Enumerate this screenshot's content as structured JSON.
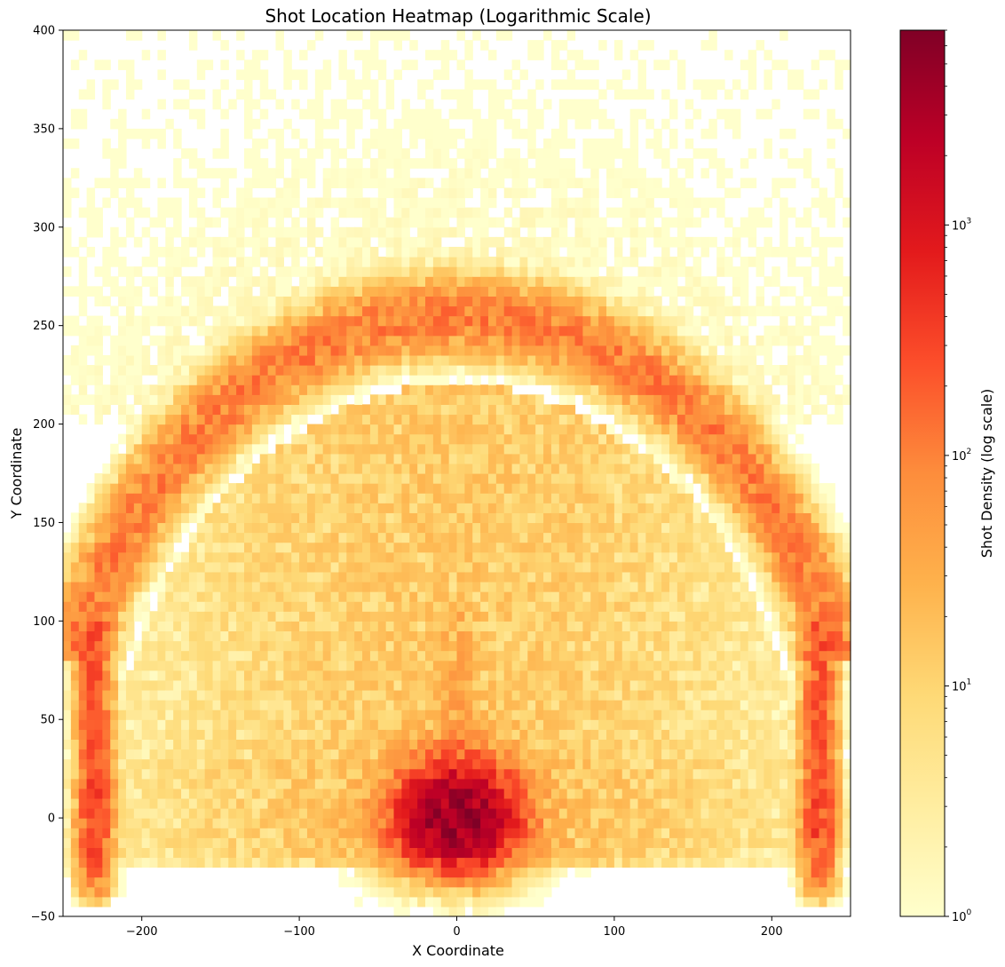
{
  "chart_data": {
    "type": "heatmap",
    "title": "Shot Location Heatmap (Logarithmic Scale)",
    "xlabel": "X Coordinate",
    "ylabel": "Y Coordinate",
    "xlim": [
      -250,
      250
    ],
    "ylim": [
      -50,
      400
    ],
    "x_ticks": [
      -200,
      -100,
      0,
      100,
      200
    ],
    "x_tick_labels": [
      "−200",
      "−100",
      "0",
      "100",
      "200"
    ],
    "y_ticks": [
      -50,
      0,
      50,
      100,
      150,
      200,
      250,
      300,
      350,
      400
    ],
    "y_tick_labels": [
      "−50",
      "0",
      "50",
      "100",
      "150",
      "200",
      "250",
      "300",
      "350",
      "400"
    ],
    "bin_size": 5,
    "grid": false,
    "colormap": "YlOrRd",
    "colormap_stops": [
      "#ffffcc",
      "#ffeda0",
      "#fed976",
      "#feb24c",
      "#fd8d3c",
      "#fc4e2a",
      "#e31a1c",
      "#bd0026",
      "#800026"
    ],
    "colorbar": {
      "label": "Shot Density (log scale)",
      "scale": "log",
      "range": [
        1,
        7000
      ],
      "major_ticks": [
        1,
        10,
        100,
        1000
      ],
      "major_tick_labels": [
        "10",
        "10",
        "10",
        "10"
      ],
      "major_tick_exponents": [
        "0",
        "1",
        "2",
        "3"
      ],
      "placement": "right"
    },
    "density_features": {
      "rim_hotspot": {
        "x": 0,
        "y": 0,
        "peak_count": 6000
      },
      "paint_column": {
        "x_range": [
          -40,
          40
        ],
        "y_range": [
          -15,
          90
        ]
      },
      "three_point_arc": {
        "center_x": 0,
        "center_y": 0,
        "radius": 245,
        "peak_count": 120
      },
      "left_corner": {
        "x": -230,
        "y_range": [
          -40,
          90
        ],
        "peak_count": 300
      },
      "right_corner": {
        "x": 230,
        "y_range": [
          -40,
          90
        ],
        "peak_count": 300
      },
      "midrange_level": 15,
      "backcourt_level": 1.5
    }
  }
}
